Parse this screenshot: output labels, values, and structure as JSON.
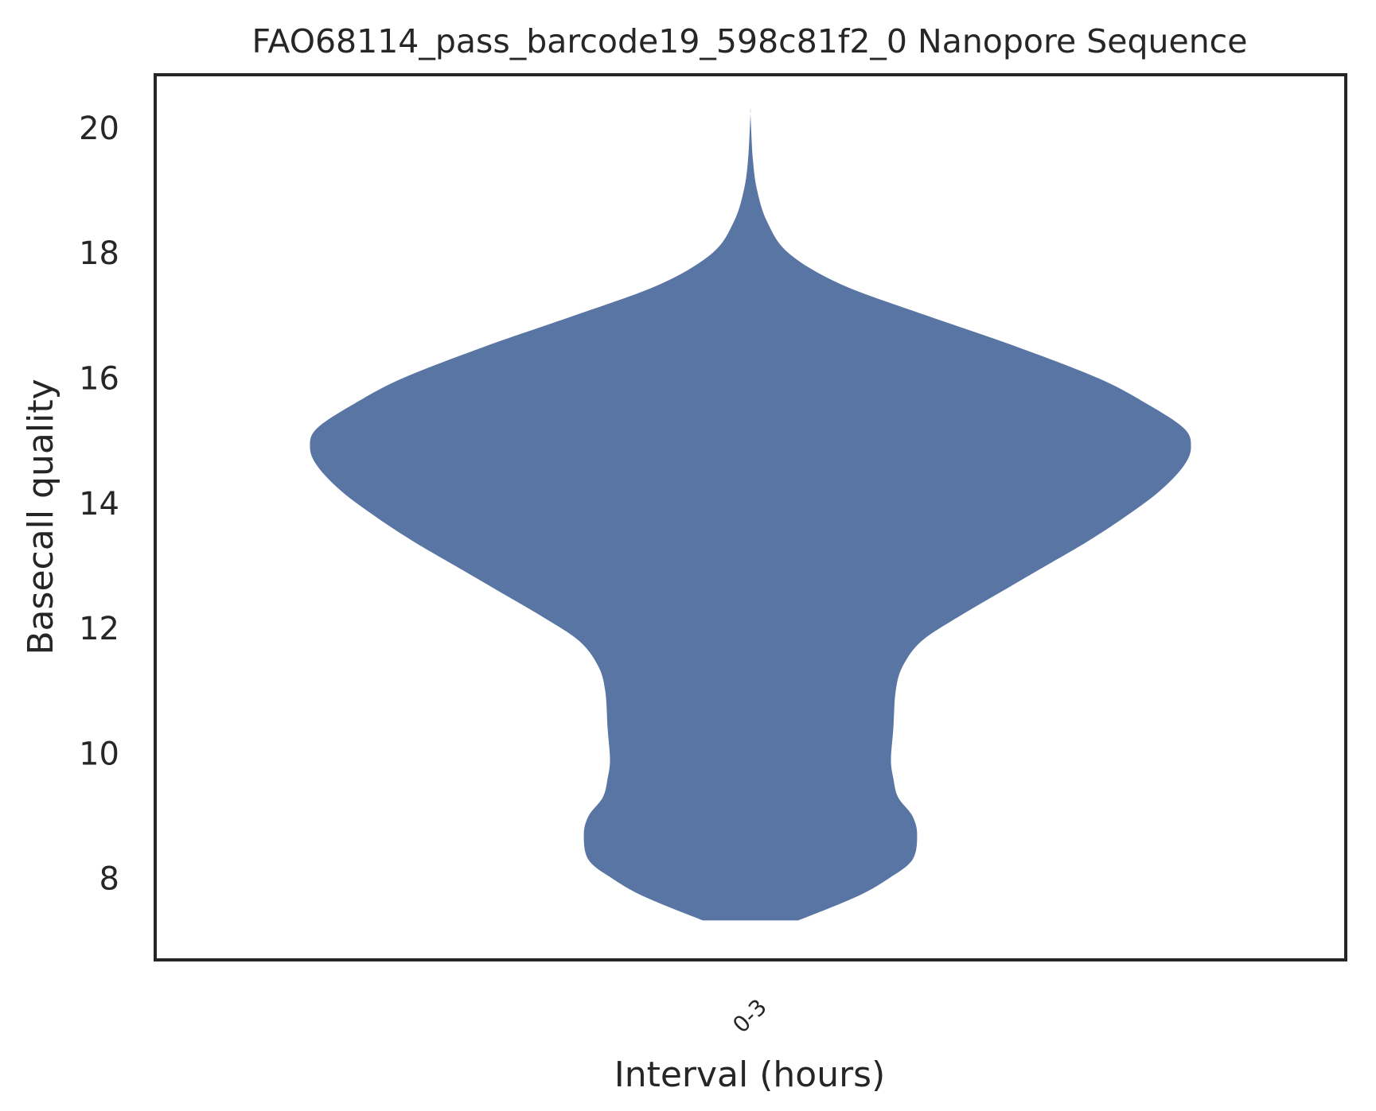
{
  "chart_data": {
    "type": "violin",
    "title": "FAO68114_pass_barcode19_598c81f2_0 Nanopore Sequence",
    "xlabel": "Interval (hours)",
    "ylabel": "Basecall quality",
    "categories": [
      "0-3"
    ],
    "ylim": [
      6.7,
      20.85
    ],
    "yticks": [
      8,
      10,
      12,
      14,
      16,
      18,
      20
    ],
    "grid": false,
    "legend": "none",
    "colors": {
      "violin": "#5975a4",
      "frame": "#262626",
      "text": "#262626"
    },
    "series": [
      {
        "category": "0-3",
        "min": 7.33,
        "max": 20.22,
        "density_profile": [
          {
            "y": 7.33,
            "w": 0.1
          },
          {
            "y": 7.7,
            "w": 0.22
          },
          {
            "y": 8.0,
            "w": 0.29
          },
          {
            "y": 8.3,
            "w": 0.34
          },
          {
            "y": 8.7,
            "w": 0.35
          },
          {
            "y": 9.0,
            "w": 0.34
          },
          {
            "y": 9.3,
            "w": 0.31
          },
          {
            "y": 9.6,
            "w": 0.3
          },
          {
            "y": 9.9,
            "w": 0.295
          },
          {
            "y": 10.4,
            "w": 0.3
          },
          {
            "y": 11.0,
            "w": 0.305
          },
          {
            "y": 11.4,
            "w": 0.32
          },
          {
            "y": 11.8,
            "w": 0.36
          },
          {
            "y": 12.2,
            "w": 0.44
          },
          {
            "y": 12.6,
            "w": 0.53
          },
          {
            "y": 13.0,
            "w": 0.62
          },
          {
            "y": 13.4,
            "w": 0.71
          },
          {
            "y": 13.8,
            "w": 0.79
          },
          {
            "y": 14.2,
            "w": 0.86
          },
          {
            "y": 14.6,
            "w": 0.91
          },
          {
            "y": 14.9,
            "w": 0.925
          },
          {
            "y": 15.2,
            "w": 0.91
          },
          {
            "y": 15.6,
            "w": 0.83
          },
          {
            "y": 16.0,
            "w": 0.73
          },
          {
            "y": 16.5,
            "w": 0.56
          },
          {
            "y": 17.0,
            "w": 0.37
          },
          {
            "y": 17.5,
            "w": 0.19
          },
          {
            "y": 18.0,
            "w": 0.08
          },
          {
            "y": 18.5,
            "w": 0.035
          },
          {
            "y": 19.0,
            "w": 0.014
          },
          {
            "y": 19.5,
            "w": 0.005
          },
          {
            "y": 20.22,
            "w": 0.0
          }
        ]
      }
    ]
  }
}
